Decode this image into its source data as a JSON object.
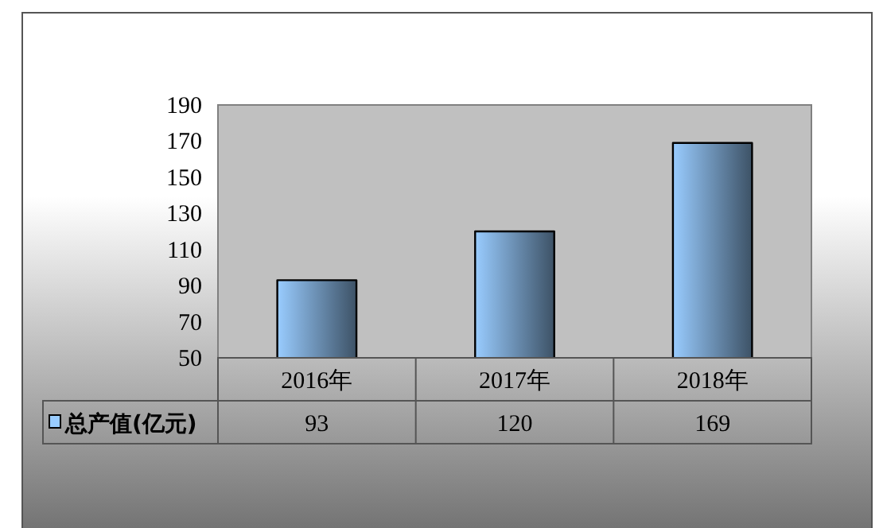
{
  "chart_data": {
    "type": "bar",
    "categories": [
      "2016年",
      "2017年",
      "2018年"
    ],
    "series": [
      {
        "name": "总产值(亿元)",
        "color": "#99ccff",
        "values": [
          93,
          120,
          169
        ]
      }
    ],
    "ylim": [
      50,
      190
    ],
    "yticks": [
      50,
      70,
      90,
      110,
      130,
      150,
      170,
      190
    ],
    "grid": false,
    "legend": "bottom",
    "data_labels": true
  }
}
